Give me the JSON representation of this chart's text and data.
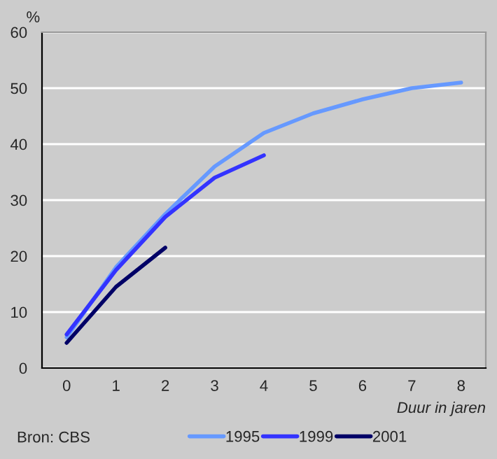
{
  "chart_data": {
    "type": "line",
    "ylabel": "%",
    "xlabel": "Duur in jaren",
    "categories": [
      "0",
      "1",
      "2",
      "3",
      "4",
      "5",
      "6",
      "7",
      "8"
    ],
    "series": [
      {
        "name": "1995",
        "color": "#6699ff",
        "values": [
          5.5,
          18,
          27.5,
          36,
          42,
          45.5,
          48,
          50,
          51
        ]
      },
      {
        "name": "1999",
        "color": "#3333ff",
        "values": [
          6,
          17.5,
          27,
          34,
          38,
          null,
          null,
          null,
          null
        ]
      },
      {
        "name": "2001",
        "color": "#000066",
        "values": [
          4.5,
          14.5,
          21.5,
          null,
          null,
          null,
          null,
          null,
          null
        ]
      }
    ],
    "ylim": [
      0,
      60
    ],
    "yticks": [
      0,
      10,
      20,
      30,
      40,
      50,
      60
    ],
    "grid": "y",
    "legend": "bottom",
    "annotations": [
      "Bron: CBS"
    ]
  }
}
